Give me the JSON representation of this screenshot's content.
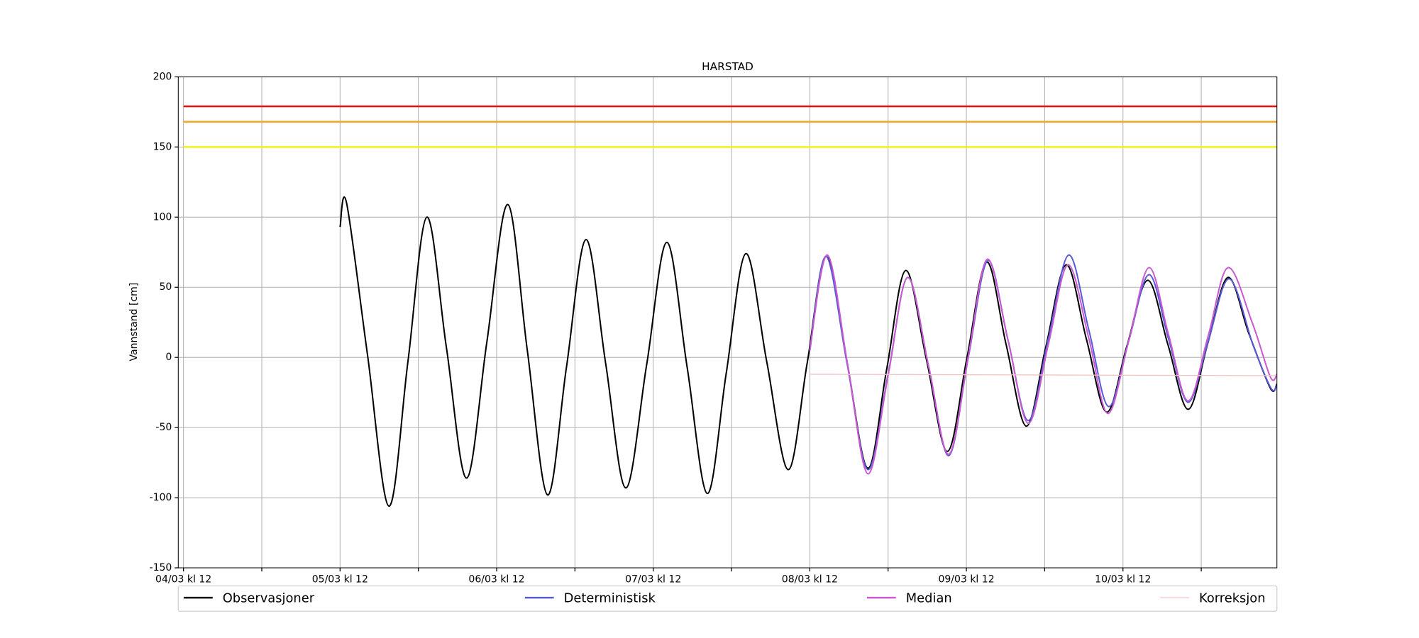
{
  "chart_data": {
    "type": "line",
    "title": "HARSTAD",
    "ylabel": "Vannstand [cm]",
    "xlim": [
      -0.8,
      167.6
    ],
    "ylim": [
      -150,
      200
    ],
    "yticks": [
      -150,
      -100,
      -50,
      0,
      50,
      100,
      150,
      200
    ],
    "xticks": [
      {
        "value": 0,
        "label": "04/03 kl 12"
      },
      {
        "value": 24,
        "label": "05/03 kl 12"
      },
      {
        "value": 48,
        "label": "06/03 kl 12"
      },
      {
        "value": 72,
        "label": "07/03 kl 12"
      },
      {
        "value": 96,
        "label": "08/03 kl 12"
      },
      {
        "value": 120,
        "label": "09/03 kl 12"
      },
      {
        "value": 144,
        "label": "10/03 kl 12"
      }
    ],
    "xminorticks": [
      12,
      36,
      60,
      84,
      108,
      132,
      156
    ],
    "grid": true,
    "legend": "bottom",
    "hlines": [
      {
        "value": 179,
        "color": "#e8100c",
        "x": [
          0,
          167.6
        ]
      },
      {
        "value": 168,
        "color": "#f5a623",
        "x": [
          0,
          167.6
        ]
      },
      {
        "value": 150,
        "color": "#f2f21a",
        "x": [
          0,
          167.6
        ]
      }
    ],
    "series": [
      {
        "name": "Observasjoner",
        "color": "#000000",
        "x": [
          24,
          25,
          28.2,
          31.5,
          34.4,
          37.3,
          40.3,
          43.4,
          46.5,
          49.7,
          52.7,
          55.8,
          58.7,
          61.7,
          64.7,
          67.8,
          71,
          74.1,
          77.2,
          80.3,
          83.2,
          86.2,
          89.4,
          92.7,
          95.6,
          98.5,
          101.7,
          104.9,
          107.8,
          110.7,
          113.9,
          117.1,
          120.1,
          123.1,
          126.1,
          129.2,
          132.2,
          135.3,
          138.4,
          141.5,
          144.6,
          147.8,
          150.9,
          154,
          157,
          160.1,
          163.3,
          166.6,
          167.6
        ],
        "values": [
          93,
          110,
          2,
          -106,
          -3,
          100,
          7,
          -86,
          11,
          109,
          5,
          -98,
          -7,
          84,
          -4,
          -93,
          -5,
          82,
          -7,
          -97,
          -11,
          74,
          -3,
          -80,
          -4,
          72,
          -3,
          -79,
          -8,
          62,
          -2,
          -67,
          0,
          68,
          9,
          -49,
          8,
          66,
          13,
          -39,
          8,
          55,
          9,
          -37,
          10,
          57,
          17,
          -22,
          -19
        ]
      },
      {
        "name": "Deterministisk",
        "color": "#5a5ad8",
        "x": [
          96,
          98.5,
          101.7,
          104.9,
          108,
          111,
          114.2,
          117.3,
          120.3,
          123.3,
          126.4,
          129.5,
          132.6,
          135.7,
          138.8,
          141.8,
          144.9,
          148,
          151,
          154,
          157.1,
          160.3,
          164,
          166.7,
          167.6
        ],
        "values": [
          5,
          72,
          -4,
          -80,
          -12,
          57,
          -6,
          -70,
          0,
          69,
          12,
          -45,
          14,
          73,
          19,
          -35,
          12,
          59,
          13,
          -32,
          12,
          56,
          8,
          -22,
          -20
        ]
      },
      {
        "name": "Median",
        "color": "#c75bcf",
        "x": [
          96,
          98.7,
          101.8,
          104.9,
          108,
          111,
          114.2,
          117.3,
          120.3,
          123.2,
          126.4,
          129.5,
          132.6,
          135.6,
          138.8,
          141.7,
          144.9,
          148,
          151,
          154,
          157.1,
          160.1,
          163.8,
          166.6,
          167.6
        ],
        "values": [
          5,
          73,
          -5,
          -83,
          -13,
          57,
          -6,
          -69,
          1,
          70,
          12,
          -47,
          10,
          66,
          13,
          -40,
          12,
          64,
          16,
          -31,
          16,
          64,
          25,
          -14,
          -12
        ]
      },
      {
        "name": "Korreksjon",
        "color": "#f0c4c4",
        "x": [
          96,
          167.6
        ],
        "values": [
          -12,
          -13
        ]
      }
    ]
  }
}
